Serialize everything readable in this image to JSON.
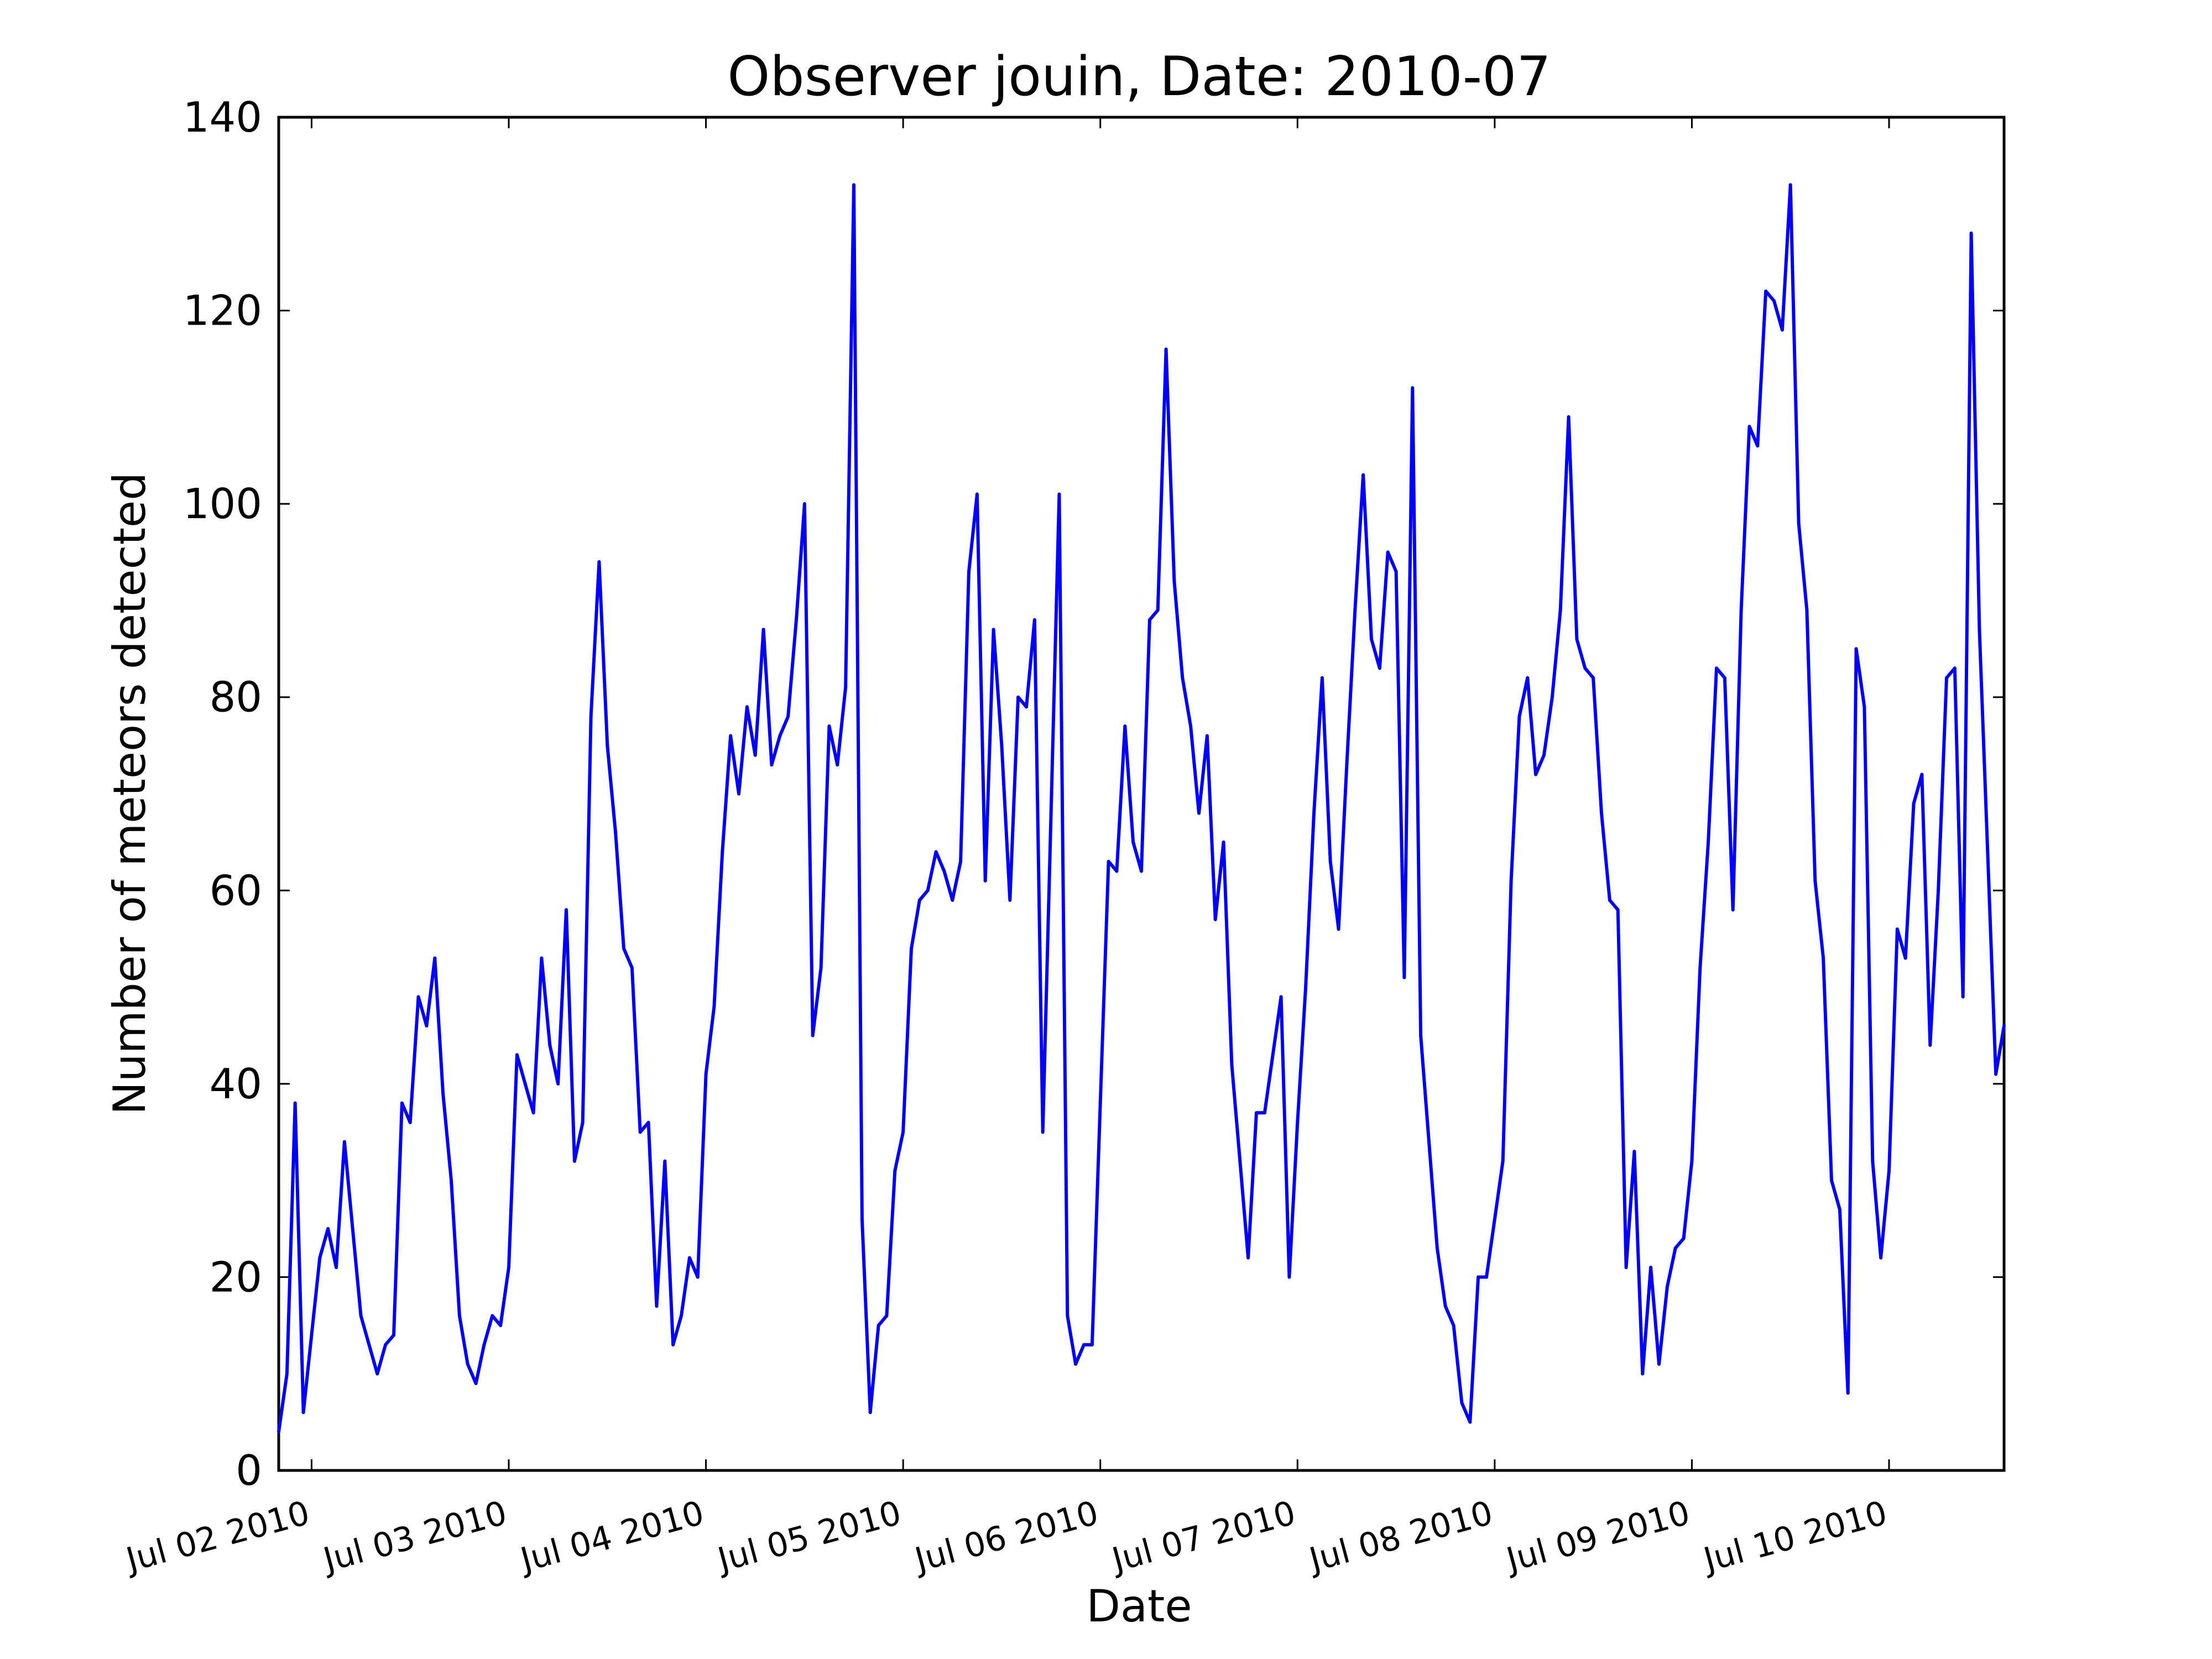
{
  "chart_data": {
    "type": "line",
    "title": "Observer jouin, Date: 2010-07",
    "xlabel": "Date",
    "ylabel": "Number of meteors detected",
    "xlim": [
      "2010-07-01 20:00",
      "2010-07-10 14:00"
    ],
    "ylim": [
      0,
      140
    ],
    "yticks": [
      0,
      20,
      40,
      60,
      80,
      100,
      120,
      140
    ],
    "xticks": [
      {
        "t": "2010-07-02 00:00",
        "label": "Jul 02 2010"
      },
      {
        "t": "2010-07-03 00:00",
        "label": "Jul 03 2010"
      },
      {
        "t": "2010-07-04 00:00",
        "label": "Jul 04 2010"
      },
      {
        "t": "2010-07-05 00:00",
        "label": "Jul 05 2010"
      },
      {
        "t": "2010-07-06 00:00",
        "label": "Jul 06 2010"
      },
      {
        "t": "2010-07-07 00:00",
        "label": "Jul 07 2010"
      },
      {
        "t": "2010-07-08 00:00",
        "label": "Jul 08 2010"
      },
      {
        "t": "2010-07-09 00:00",
        "label": "Jul 09 2010"
      },
      {
        "t": "2010-07-10 00:00",
        "label": "Jul 10 2010"
      }
    ],
    "grid": false,
    "line_color": "#0000ff",
    "series": [
      {
        "x": [
          "2010-07-01 20:00",
          "2010-07-01 21:00",
          "2010-07-01 22:00",
          "2010-07-01 23:00",
          "2010-07-02 00:00",
          "2010-07-02 01:00",
          "2010-07-02 02:00",
          "2010-07-02 03:00",
          "2010-07-02 04:00",
          "2010-07-02 05:00",
          "2010-07-02 06:00",
          "2010-07-02 07:00",
          "2010-07-02 08:00",
          "2010-07-02 09:00",
          "2010-07-02 10:00",
          "2010-07-02 11:00",
          "2010-07-02 12:00",
          "2010-07-02 13:00",
          "2010-07-02 14:00",
          "2010-07-02 15:00",
          "2010-07-02 16:00",
          "2010-07-02 17:00",
          "2010-07-02 18:00",
          "2010-07-02 19:00",
          "2010-07-02 20:00",
          "2010-07-02 21:00",
          "2010-07-02 22:00",
          "2010-07-02 23:00",
          "2010-07-03 00:00",
          "2010-07-03 01:00",
          "2010-07-03 02:00",
          "2010-07-03 03:00",
          "2010-07-03 04:00",
          "2010-07-03 05:00",
          "2010-07-03 06:00",
          "2010-07-03 07:00",
          "2010-07-03 08:00",
          "2010-07-03 09:00",
          "2010-07-03 10:00",
          "2010-07-03 11:00",
          "2010-07-03 12:00",
          "2010-07-03 13:00",
          "2010-07-03 14:00",
          "2010-07-03 15:00",
          "2010-07-03 16:00",
          "2010-07-03 17:00",
          "2010-07-03 18:00",
          "2010-07-03 19:00",
          "2010-07-03 20:00",
          "2010-07-03 21:00",
          "2010-07-03 22:00",
          "2010-07-03 23:00",
          "2010-07-04 00:00",
          "2010-07-04 01:00",
          "2010-07-04 02:00",
          "2010-07-04 03:00",
          "2010-07-04 04:00",
          "2010-07-04 05:00",
          "2010-07-04 06:00",
          "2010-07-04 07:00",
          "2010-07-04 08:00",
          "2010-07-04 09:00",
          "2010-07-04 10:00",
          "2010-07-04 11:00",
          "2010-07-04 12:00",
          "2010-07-04 13:00",
          "2010-07-04 14:00",
          "2010-07-04 15:00",
          "2010-07-04 16:00",
          "2010-07-04 17:00",
          "2010-07-04 18:00",
          "2010-07-04 19:00",
          "2010-07-04 20:00",
          "2010-07-04 21:00",
          "2010-07-04 22:00",
          "2010-07-04 23:00",
          "2010-07-05 00:00",
          "2010-07-05 01:00",
          "2010-07-05 02:00",
          "2010-07-05 03:00",
          "2010-07-05 04:00",
          "2010-07-05 05:00",
          "2010-07-05 06:00",
          "2010-07-05 07:00",
          "2010-07-05 08:00",
          "2010-07-05 09:00",
          "2010-07-05 10:00",
          "2010-07-05 11:00",
          "2010-07-05 12:00",
          "2010-07-05 13:00",
          "2010-07-05 14:00",
          "2010-07-05 15:00",
          "2010-07-05 16:00",
          "2010-07-05 17:00",
          "2010-07-05 18:00",
          "2010-07-05 19:00",
          "2010-07-05 20:00",
          "2010-07-05 21:00",
          "2010-07-05 22:00",
          "2010-07-05 23:00",
          "2010-07-06 00:00",
          "2010-07-06 01:00",
          "2010-07-06 02:00",
          "2010-07-06 03:00",
          "2010-07-06 04:00",
          "2010-07-06 05:00",
          "2010-07-06 06:00",
          "2010-07-06 07:00",
          "2010-07-06 08:00",
          "2010-07-06 09:00",
          "2010-07-06 10:00",
          "2010-07-06 11:00",
          "2010-07-06 12:00",
          "2010-07-06 13:00",
          "2010-07-06 14:00",
          "2010-07-06 15:00",
          "2010-07-06 16:00",
          "2010-07-06 17:00",
          "2010-07-06 18:00",
          "2010-07-06 19:00",
          "2010-07-06 20:00",
          "2010-07-06 21:00",
          "2010-07-06 22:00",
          "2010-07-06 23:00",
          "2010-07-07 00:00",
          "2010-07-07 01:00",
          "2010-07-07 02:00",
          "2010-07-07 03:00",
          "2010-07-07 04:00",
          "2010-07-07 05:00",
          "2010-07-07 06:00",
          "2010-07-07 07:00",
          "2010-07-07 08:00",
          "2010-07-07 09:00",
          "2010-07-07 10:00",
          "2010-07-07 11:00",
          "2010-07-07 12:00",
          "2010-07-07 13:00",
          "2010-07-07 14:00",
          "2010-07-07 15:00",
          "2010-07-07 16:00",
          "2010-07-07 17:00",
          "2010-07-07 18:00",
          "2010-07-07 19:00",
          "2010-07-07 20:00",
          "2010-07-07 21:00",
          "2010-07-07 22:00",
          "2010-07-07 23:00",
          "2010-07-08 00:00",
          "2010-07-08 01:00",
          "2010-07-08 02:00",
          "2010-07-08 03:00",
          "2010-07-08 04:00",
          "2010-07-08 05:00",
          "2010-07-08 06:00",
          "2010-07-08 07:00",
          "2010-07-08 08:00",
          "2010-07-08 09:00",
          "2010-07-08 10:00",
          "2010-07-08 11:00",
          "2010-07-08 12:00",
          "2010-07-08 13:00",
          "2010-07-08 14:00",
          "2010-07-08 15:00",
          "2010-07-08 16:00",
          "2010-07-08 17:00",
          "2010-07-08 18:00",
          "2010-07-08 19:00",
          "2010-07-08 20:00",
          "2010-07-08 21:00",
          "2010-07-08 22:00",
          "2010-07-08 23:00",
          "2010-07-09 00:00",
          "2010-07-09 01:00",
          "2010-07-09 02:00",
          "2010-07-09 03:00",
          "2010-07-09 04:00",
          "2010-07-09 05:00",
          "2010-07-09 06:00",
          "2010-07-09 07:00",
          "2010-07-09 08:00",
          "2010-07-09 09:00",
          "2010-07-09 10:00",
          "2010-07-09 11:00",
          "2010-07-09 12:00",
          "2010-07-09 13:00",
          "2010-07-09 14:00",
          "2010-07-09 15:00",
          "2010-07-09 16:00",
          "2010-07-09 17:00",
          "2010-07-09 18:00",
          "2010-07-09 19:00",
          "2010-07-09 20:00",
          "2010-07-09 21:00",
          "2010-07-09 22:00",
          "2010-07-09 23:00",
          "2010-07-10 00:00",
          "2010-07-10 01:00",
          "2010-07-10 02:00",
          "2010-07-10 03:00",
          "2010-07-10 04:00",
          "2010-07-10 05:00",
          "2010-07-10 06:00",
          "2010-07-10 07:00",
          "2010-07-10 08:00",
          "2010-07-10 09:00",
          "2010-07-10 10:00",
          "2010-07-10 11:00",
          "2010-07-10 12:00",
          "2010-07-10 13:00",
          "2010-07-10 14:00"
        ],
        "values": [
          4,
          10,
          38,
          6,
          14,
          22,
          25,
          21,
          34,
          25,
          16,
          13,
          10,
          13,
          14,
          38,
          36,
          49,
          46,
          53,
          39,
          30,
          16,
          11,
          9,
          13,
          16,
          15,
          21,
          43,
          40,
          37,
          53,
          44,
          40,
          58,
          32,
          36,
          78,
          94,
          75,
          66,
          54,
          52,
          35,
          36,
          17,
          32,
          13,
          16,
          22,
          20,
          41,
          48,
          64,
          76,
          70,
          79,
          74,
          87,
          73,
          76,
          78,
          88,
          100,
          45,
          52,
          77,
          73,
          81,
          133,
          26,
          6,
          15,
          16,
          31,
          35,
          54,
          59,
          60,
          64,
          62,
          59,
          63,
          93,
          101,
          61,
          87,
          75,
          59,
          80,
          79,
          88,
          35,
          68,
          101,
          16,
          11,
          13,
          13,
          38,
          63,
          62,
          77,
          65,
          62,
          88,
          89,
          116,
          92,
          82,
          77,
          68,
          76,
          57,
          65,
          42,
          32,
          22,
          37,
          37,
          43,
          49,
          20,
          36,
          50,
          68,
          82,
          63,
          56,
          73,
          89,
          103,
          86,
          83,
          95,
          93,
          51,
          112,
          45,
          34,
          23,
          17,
          15,
          7,
          5,
          20,
          20,
          26,
          32,
          61,
          78,
          82,
          72,
          74,
          80,
          89,
          109,
          86,
          83,
          82,
          68,
          59,
          58,
          21,
          33,
          10,
          21,
          11,
          19,
          23,
          24,
          32,
          52,
          65,
          83,
          82,
          58,
          89,
          108,
          106,
          122,
          121,
          118,
          133,
          98,
          89,
          61,
          53,
          30,
          27,
          8,
          85,
          79,
          32,
          22,
          31,
          56,
          53,
          69,
          72,
          44,
          60,
          82,
          83,
          49,
          128,
          87,
          64,
          41,
          46
        ]
      }
    ]
  }
}
